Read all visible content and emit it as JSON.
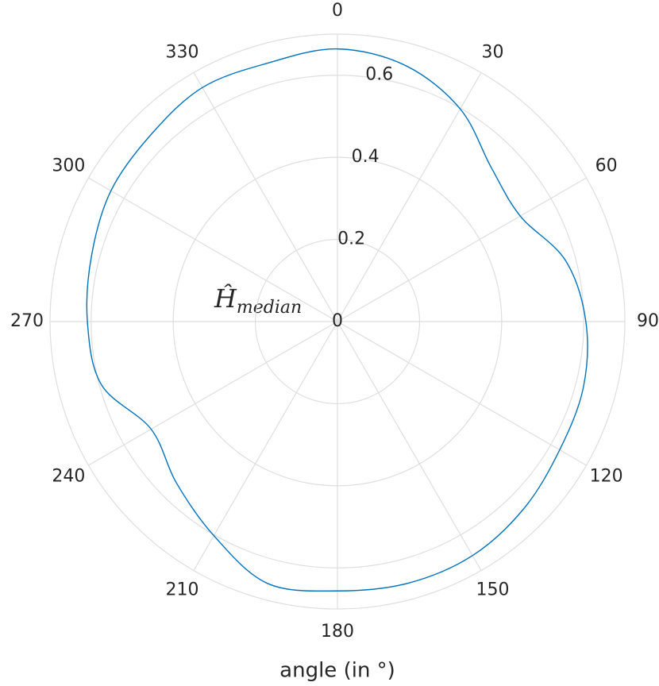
{
  "chart_data": {
    "type": "polar_line",
    "theta_zero": "top",
    "theta_direction": "clockwise",
    "theta": [
      0,
      15,
      30,
      45,
      60,
      75,
      90,
      105,
      120,
      135,
      150,
      165,
      180,
      195,
      210,
      225,
      240,
      255,
      270,
      285,
      300,
      315,
      330,
      345
    ],
    "series": [
      {
        "color": "#0072bd",
        "values": [
          0.664,
          0.645,
          0.598,
          0.53,
          0.514,
          0.575,
          0.605,
          0.62,
          0.625,
          0.643,
          0.658,
          0.66,
          0.656,
          0.66,
          0.602,
          0.555,
          0.524,
          0.595,
          0.609,
          0.62,
          0.637,
          0.643,
          0.658,
          0.652
        ]
      }
    ],
    "rlim": [
      0,
      0.7
    ],
    "rticks": [
      0,
      0.2,
      0.4,
      0.6
    ],
    "thetaticks": [
      0,
      30,
      60,
      90,
      120,
      150,
      180,
      210,
      240,
      270,
      300,
      330
    ],
    "grid": true,
    "rlabel": {
      "text": "Ĥ",
      "subscript": "median"
    },
    "xlabel": "angle (in °)"
  }
}
